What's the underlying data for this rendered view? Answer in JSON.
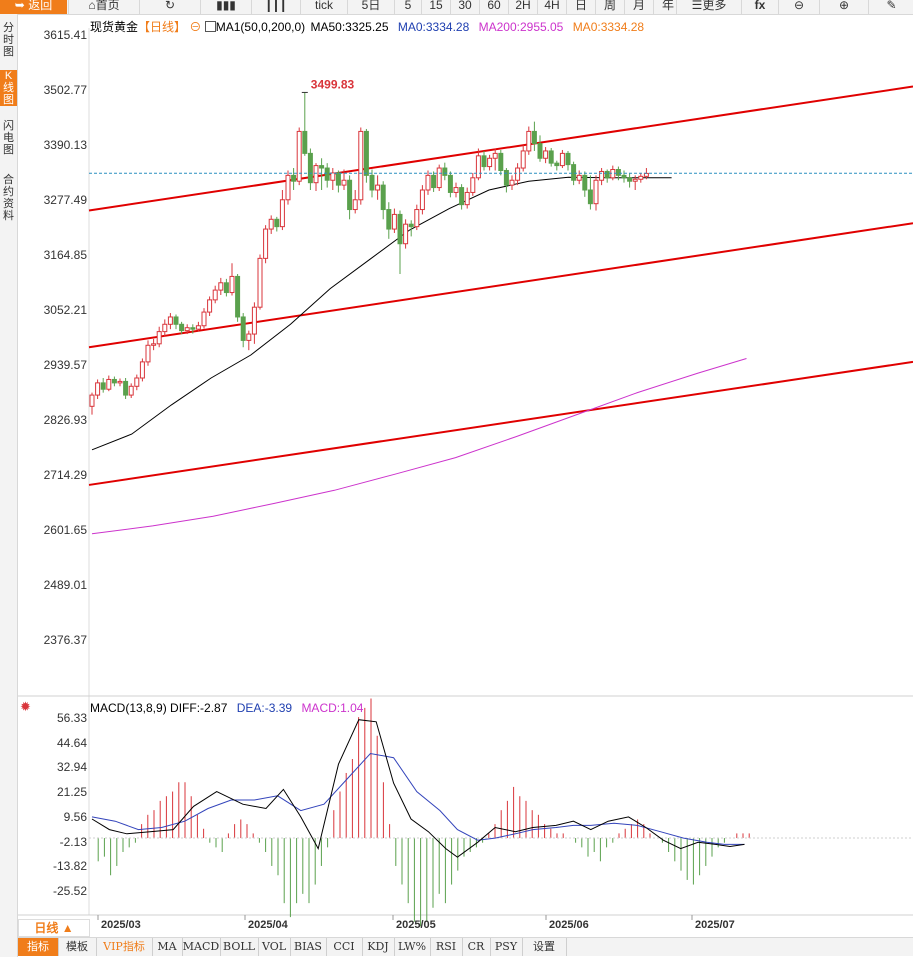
{
  "toolbar": {
    "back": "返回",
    "home": "首页",
    "tick": "tick",
    "periods": [
      "5日",
      "5",
      "15",
      "30",
      "60",
      "2H",
      "4H",
      "日",
      "周",
      "月",
      "年"
    ],
    "more": "更多",
    "fx": "fx"
  },
  "sidebar": [
    {
      "label": "分时图",
      "active": false
    },
    {
      "label": "K线图",
      "active": true
    },
    {
      "label": "闪电图",
      "active": false
    },
    {
      "label": "合约资料",
      "active": false
    }
  ],
  "legend": {
    "symbol": "现货黄金",
    "period": "【日线】",
    "ma_name": "MA1(50,0,200,0)",
    "ma50": "MA50:3325.25",
    "ma0a": "MA0:3334.28",
    "ma200": "MA200:2955.05",
    "ma0b": "MA0:3334.28"
  },
  "macd_legend": {
    "name": "MACD(13,8,9)",
    "diff": "DIFF:-2.87",
    "dea": "DEA:-3.39",
    "macd": "MACD:1.04"
  },
  "colors": {
    "up": "#d9353b",
    "down": "#5aa14d",
    "ma50": "#000000",
    "ma200": "#cc33cc",
    "channel": "#e00000",
    "diff": "#000000",
    "dea": "#3344bb",
    "accent": "#f07d1a"
  },
  "period_label": "日线 ▲",
  "indicators": [
    "指标",
    "模板",
    "VIP指标",
    "MA",
    "MACD",
    "BOLL",
    "VOL",
    "BIAS",
    "CCI",
    "KDJ",
    "LW%",
    "RSI",
    "CR",
    "PSY",
    "设置"
  ],
  "chart_data": [
    {
      "type": "candlestick",
      "y_ticks": [
        "3615.41",
        "3502.77",
        "3390.13",
        "3277.49",
        "3164.85",
        "3052.21",
        "2939.57",
        "2826.93",
        "2714.29",
        "2601.65",
        "2489.01",
        "2376.37"
      ],
      "ylim": [
        2376.37,
        3615.41
      ],
      "x_ticks": [
        "2025/03",
        "2025/04",
        "2025/05",
        "2025/06",
        "2025/07"
      ],
      "max_label": "3499.83",
      "last_price": 3334.28,
      "candles": [
        [
          2857,
          2880,
          2840,
          2885
        ],
        [
          2880,
          2905,
          2872,
          2912
        ],
        [
          2905,
          2892,
          2885,
          2915
        ],
        [
          2892,
          2912,
          2888,
          2920
        ],
        [
          2912,
          2905,
          2898,
          2918
        ],
        [
          2905,
          2908,
          2898,
          2914
        ],
        [
          2908,
          2880,
          2872,
          2915
        ],
        [
          2880,
          2898,
          2874,
          2904
        ],
        [
          2898,
          2915,
          2890,
          2922
        ],
        [
          2915,
          2948,
          2908,
          2955
        ],
        [
          2948,
          2982,
          2940,
          2992
        ],
        [
          2982,
          2985,
          2972,
          2995
        ],
        [
          2985,
          3010,
          2978,
          3020
        ],
        [
          3010,
          3025,
          3000,
          3035
        ],
        [
          3025,
          3040,
          3015,
          3048
        ],
        [
          3040,
          3025,
          3015,
          3045
        ],
        [
          3025,
          3012,
          3005,
          3030
        ],
        [
          3012,
          3018,
          3005,
          3025
        ],
        [
          3018,
          3015,
          3006,
          3025
        ],
        [
          3015,
          3022,
          3010,
          3030
        ],
        [
          3022,
          3050,
          3016,
          3058
        ],
        [
          3050,
          3075,
          3042,
          3082
        ],
        [
          3075,
          3095,
          3068,
          3104
        ],
        [
          3095,
          3110,
          3085,
          3120
        ],
        [
          3110,
          3090,
          3082,
          3118
        ],
        [
          3090,
          3123,
          3084,
          3150
        ],
        [
          3123,
          3040,
          3030,
          3128
        ],
        [
          3040,
          2992,
          2978,
          3048
        ],
        [
          2992,
          3005,
          2972,
          3012
        ],
        [
          3005,
          3060,
          2985,
          3070
        ],
        [
          3060,
          3160,
          3055,
          3168
        ],
        [
          3160,
          3220,
          3150,
          3228
        ],
        [
          3220,
          3240,
          3210,
          3248
        ],
        [
          3240,
          3225,
          3215,
          3245
        ],
        [
          3225,
          3280,
          3218,
          3300
        ],
        [
          3280,
          3330,
          3270,
          3340
        ],
        [
          3330,
          3318,
          3300,
          3345
        ],
        [
          3318,
          3420,
          3310,
          3428
        ],
        [
          3420,
          3375,
          3370,
          3500
        ],
        [
          3375,
          3315,
          3300,
          3385
        ],
        [
          3315,
          3350,
          3298,
          3355
        ],
        [
          3350,
          3345,
          3300,
          3365
        ],
        [
          3345,
          3320,
          3305,
          3355
        ],
        [
          3320,
          3335,
          3300,
          3345
        ],
        [
          3335,
          3310,
          3295,
          3340
        ],
        [
          3310,
          3320,
          3300,
          3342
        ],
        [
          3320,
          3260,
          3240,
          3330
        ],
        [
          3260,
          3280,
          3252,
          3300
        ],
        [
          3280,
          3420,
          3270,
          3428
        ],
        [
          3420,
          3330,
          3315,
          3425
        ],
        [
          3330,
          3300,
          3285,
          3342
        ],
        [
          3300,
          3310,
          3280,
          3330
        ],
        [
          3310,
          3260,
          3240,
          3318
        ],
        [
          3260,
          3220,
          3200,
          3275
        ],
        [
          3220,
          3250,
          3212,
          3262
        ],
        [
          3250,
          3190,
          3128,
          3258
        ],
        [
          3190,
          3230,
          3180,
          3240
        ],
        [
          3230,
          3225,
          3205,
          3238
        ],
        [
          3225,
          3260,
          3218,
          3270
        ],
        [
          3260,
          3300,
          3250,
          3310
        ],
        [
          3300,
          3330,
          3290,
          3340
        ],
        [
          3330,
          3305,
          3296,
          3338
        ],
        [
          3305,
          3345,
          3298,
          3352
        ],
        [
          3345,
          3330,
          3320,
          3356
        ],
        [
          3330,
          3295,
          3285,
          3338
        ],
        [
          3295,
          3305,
          3285,
          3315
        ],
        [
          3305,
          3270,
          3260,
          3312
        ],
        [
          3270,
          3295,
          3262,
          3305
        ],
        [
          3295,
          3325,
          3288,
          3335
        ],
        [
          3325,
          3370,
          3320,
          3385
        ],
        [
          3370,
          3348,
          3340,
          3380
        ],
        [
          3348,
          3365,
          3340,
          3372
        ],
        [
          3365,
          3375,
          3340,
          3385
        ],
        [
          3375,
          3340,
          3330,
          3382
        ],
        [
          3340,
          3310,
          3295,
          3345
        ],
        [
          3310,
          3320,
          3300,
          3330
        ],
        [
          3320,
          3345,
          3310,
          3355
        ],
        [
          3345,
          3380,
          3338,
          3392
        ],
        [
          3380,
          3420,
          3372,
          3430
        ],
        [
          3420,
          3395,
          3380,
          3440
        ],
        [
          3395,
          3365,
          3358,
          3412
        ],
        [
          3365,
          3380,
          3355,
          3388
        ],
        [
          3380,
          3355,
          3348,
          3386
        ],
        [
          3355,
          3350,
          3340,
          3360
        ],
        [
          3350,
          3375,
          3345,
          3382
        ],
        [
          3375,
          3352,
          3340,
          3380
        ],
        [
          3352,
          3320,
          3310,
          3358
        ],
        [
          3320,
          3330,
          3312,
          3340
        ],
        [
          3330,
          3300,
          3286,
          3338
        ],
        [
          3300,
          3272,
          3260,
          3330
        ],
        [
          3272,
          3320,
          3258,
          3330
        ],
        [
          3320,
          3338,
          3310,
          3345
        ],
        [
          3338,
          3325,
          3315,
          3342
        ],
        [
          3325,
          3342,
          3320,
          3350
        ],
        [
          3342,
          3330,
          3320,
          3348
        ],
        [
          3330,
          3325,
          3315,
          3340
        ],
        [
          3325,
          3318,
          3305,
          3335
        ],
        [
          3318,
          3322,
          3300,
          3330
        ],
        [
          3322,
          3328,
          3315,
          3335
        ],
        [
          3328,
          3334,
          3322,
          3345
        ]
      ],
      "ma50": [
        [
          0,
          2768
        ],
        [
          10,
          2800
        ],
        [
          20,
          2860
        ],
        [
          30,
          2915
        ],
        [
          40,
          2962
        ],
        [
          50,
          3025
        ],
        [
          60,
          3098
        ],
        [
          70,
          3158
        ],
        [
          80,
          3218
        ],
        [
          90,
          3262
        ],
        [
          100,
          3300
        ],
        [
          110,
          3318
        ],
        [
          120,
          3326
        ],
        [
          130,
          3325
        ],
        [
          140,
          3325
        ],
        [
          146,
          3325
        ]
      ],
      "ma200": [
        [
          0,
          2596
        ],
        [
          20,
          2612
        ],
        [
          40,
          2632
        ],
        [
          60,
          2658
        ],
        [
          80,
          2685
        ],
        [
          100,
          2718
        ],
        [
          120,
          2752
        ],
        [
          140,
          2795
        ],
        [
          160,
          2840
        ],
        [
          180,
          2885
        ],
        [
          200,
          2925
        ],
        [
          216,
          2955
        ]
      ],
      "channel_lines": [
        {
          "start": 3258,
          "end": 3512
        },
        {
          "start": 2978,
          "end": 3232
        },
        {
          "start": 2696,
          "end": 2948
        }
      ]
    },
    {
      "type": "macd",
      "y_ticks": [
        "56.33",
        "44.64",
        "32.94",
        "21.25",
        "9.56",
        "-2.13",
        "-13.82",
        "-25.52"
      ],
      "ylim": [
        -25.52,
        56.33
      ],
      "diff": [
        [
          0,
          9
        ],
        [
          6,
          4
        ],
        [
          12,
          2
        ],
        [
          20,
          3
        ],
        [
          28,
          4
        ],
        [
          35,
          15
        ],
        [
          43,
          22
        ],
        [
          52,
          16
        ],
        [
          60,
          14
        ],
        [
          66,
          23
        ],
        [
          72,
          10
        ],
        [
          78,
          -5
        ],
        [
          85,
          35
        ],
        [
          92,
          56
        ],
        [
          98,
          55
        ],
        [
          104,
          26
        ],
        [
          110,
          9
        ],
        [
          116,
          3
        ],
        [
          122,
          -5
        ],
        [
          126,
          -9
        ],
        [
          133,
          -2
        ],
        [
          139,
          5
        ],
        [
          146,
          3
        ],
        [
          152,
          5
        ],
        [
          160,
          6
        ],
        [
          166,
          8
        ],
        [
          172,
          4
        ],
        [
          178,
          8
        ],
        [
          185,
          10
        ],
        [
          191,
          5
        ],
        [
          197,
          -1
        ],
        [
          203,
          -5
        ],
        [
          209,
          -2
        ],
        [
          215,
          -3
        ],
        [
          220,
          -4
        ],
        [
          225,
          -3
        ]
      ],
      "dea": [
        [
          0,
          10
        ],
        [
          8,
          8
        ],
        [
          16,
          4
        ],
        [
          24,
          5
        ],
        [
          32,
          8
        ],
        [
          40,
          14
        ],
        [
          48,
          18
        ],
        [
          56,
          18
        ],
        [
          64,
          20
        ],
        [
          72,
          13
        ],
        [
          80,
          16
        ],
        [
          88,
          28
        ],
        [
          96,
          40
        ],
        [
          104,
          38
        ],
        [
          112,
          22
        ],
        [
          120,
          13
        ],
        [
          126,
          4
        ],
        [
          133,
          -1
        ],
        [
          139,
          0
        ],
        [
          146,
          2
        ],
        [
          152,
          4
        ],
        [
          160,
          5
        ],
        [
          166,
          6
        ],
        [
          172,
          6
        ],
        [
          180,
          7
        ],
        [
          188,
          6
        ],
        [
          196,
          3
        ],
        [
          204,
          0
        ],
        [
          212,
          -2
        ],
        [
          218,
          -3
        ],
        [
          225,
          -3
        ]
      ],
      "histogram": [
        0,
        -5,
        -4,
        -8,
        -6,
        -3,
        -2,
        -1,
        3,
        5,
        6,
        8,
        9,
        10,
        12,
        12,
        9,
        5,
        2,
        -1,
        -2,
        -3,
        1,
        3,
        4,
        3,
        1,
        -1,
        -3,
        -6,
        -8,
        -14,
        -17,
        -14,
        -12,
        -14,
        -10,
        -6,
        -2,
        6,
        10,
        14,
        17,
        26,
        28,
        30,
        22,
        12,
        3,
        -6,
        -10,
        -14,
        -18,
        -19,
        -18,
        -15,
        -12,
        -14,
        -10,
        -7,
        -4,
        -3,
        -2,
        -1,
        1,
        3,
        6,
        8,
        11,
        9,
        8,
        6,
        5,
        3,
        2,
        1,
        1,
        0,
        -1,
        -2,
        -4,
        -3,
        -5,
        -2,
        -1,
        1,
        2,
        3,
        4,
        3,
        1,
        0,
        -1,
        -3,
        -5,
        -7,
        -9,
        -10,
        -8,
        -6,
        -4,
        -2,
        -1,
        0,
        1,
        1,
        1
      ]
    }
  ]
}
